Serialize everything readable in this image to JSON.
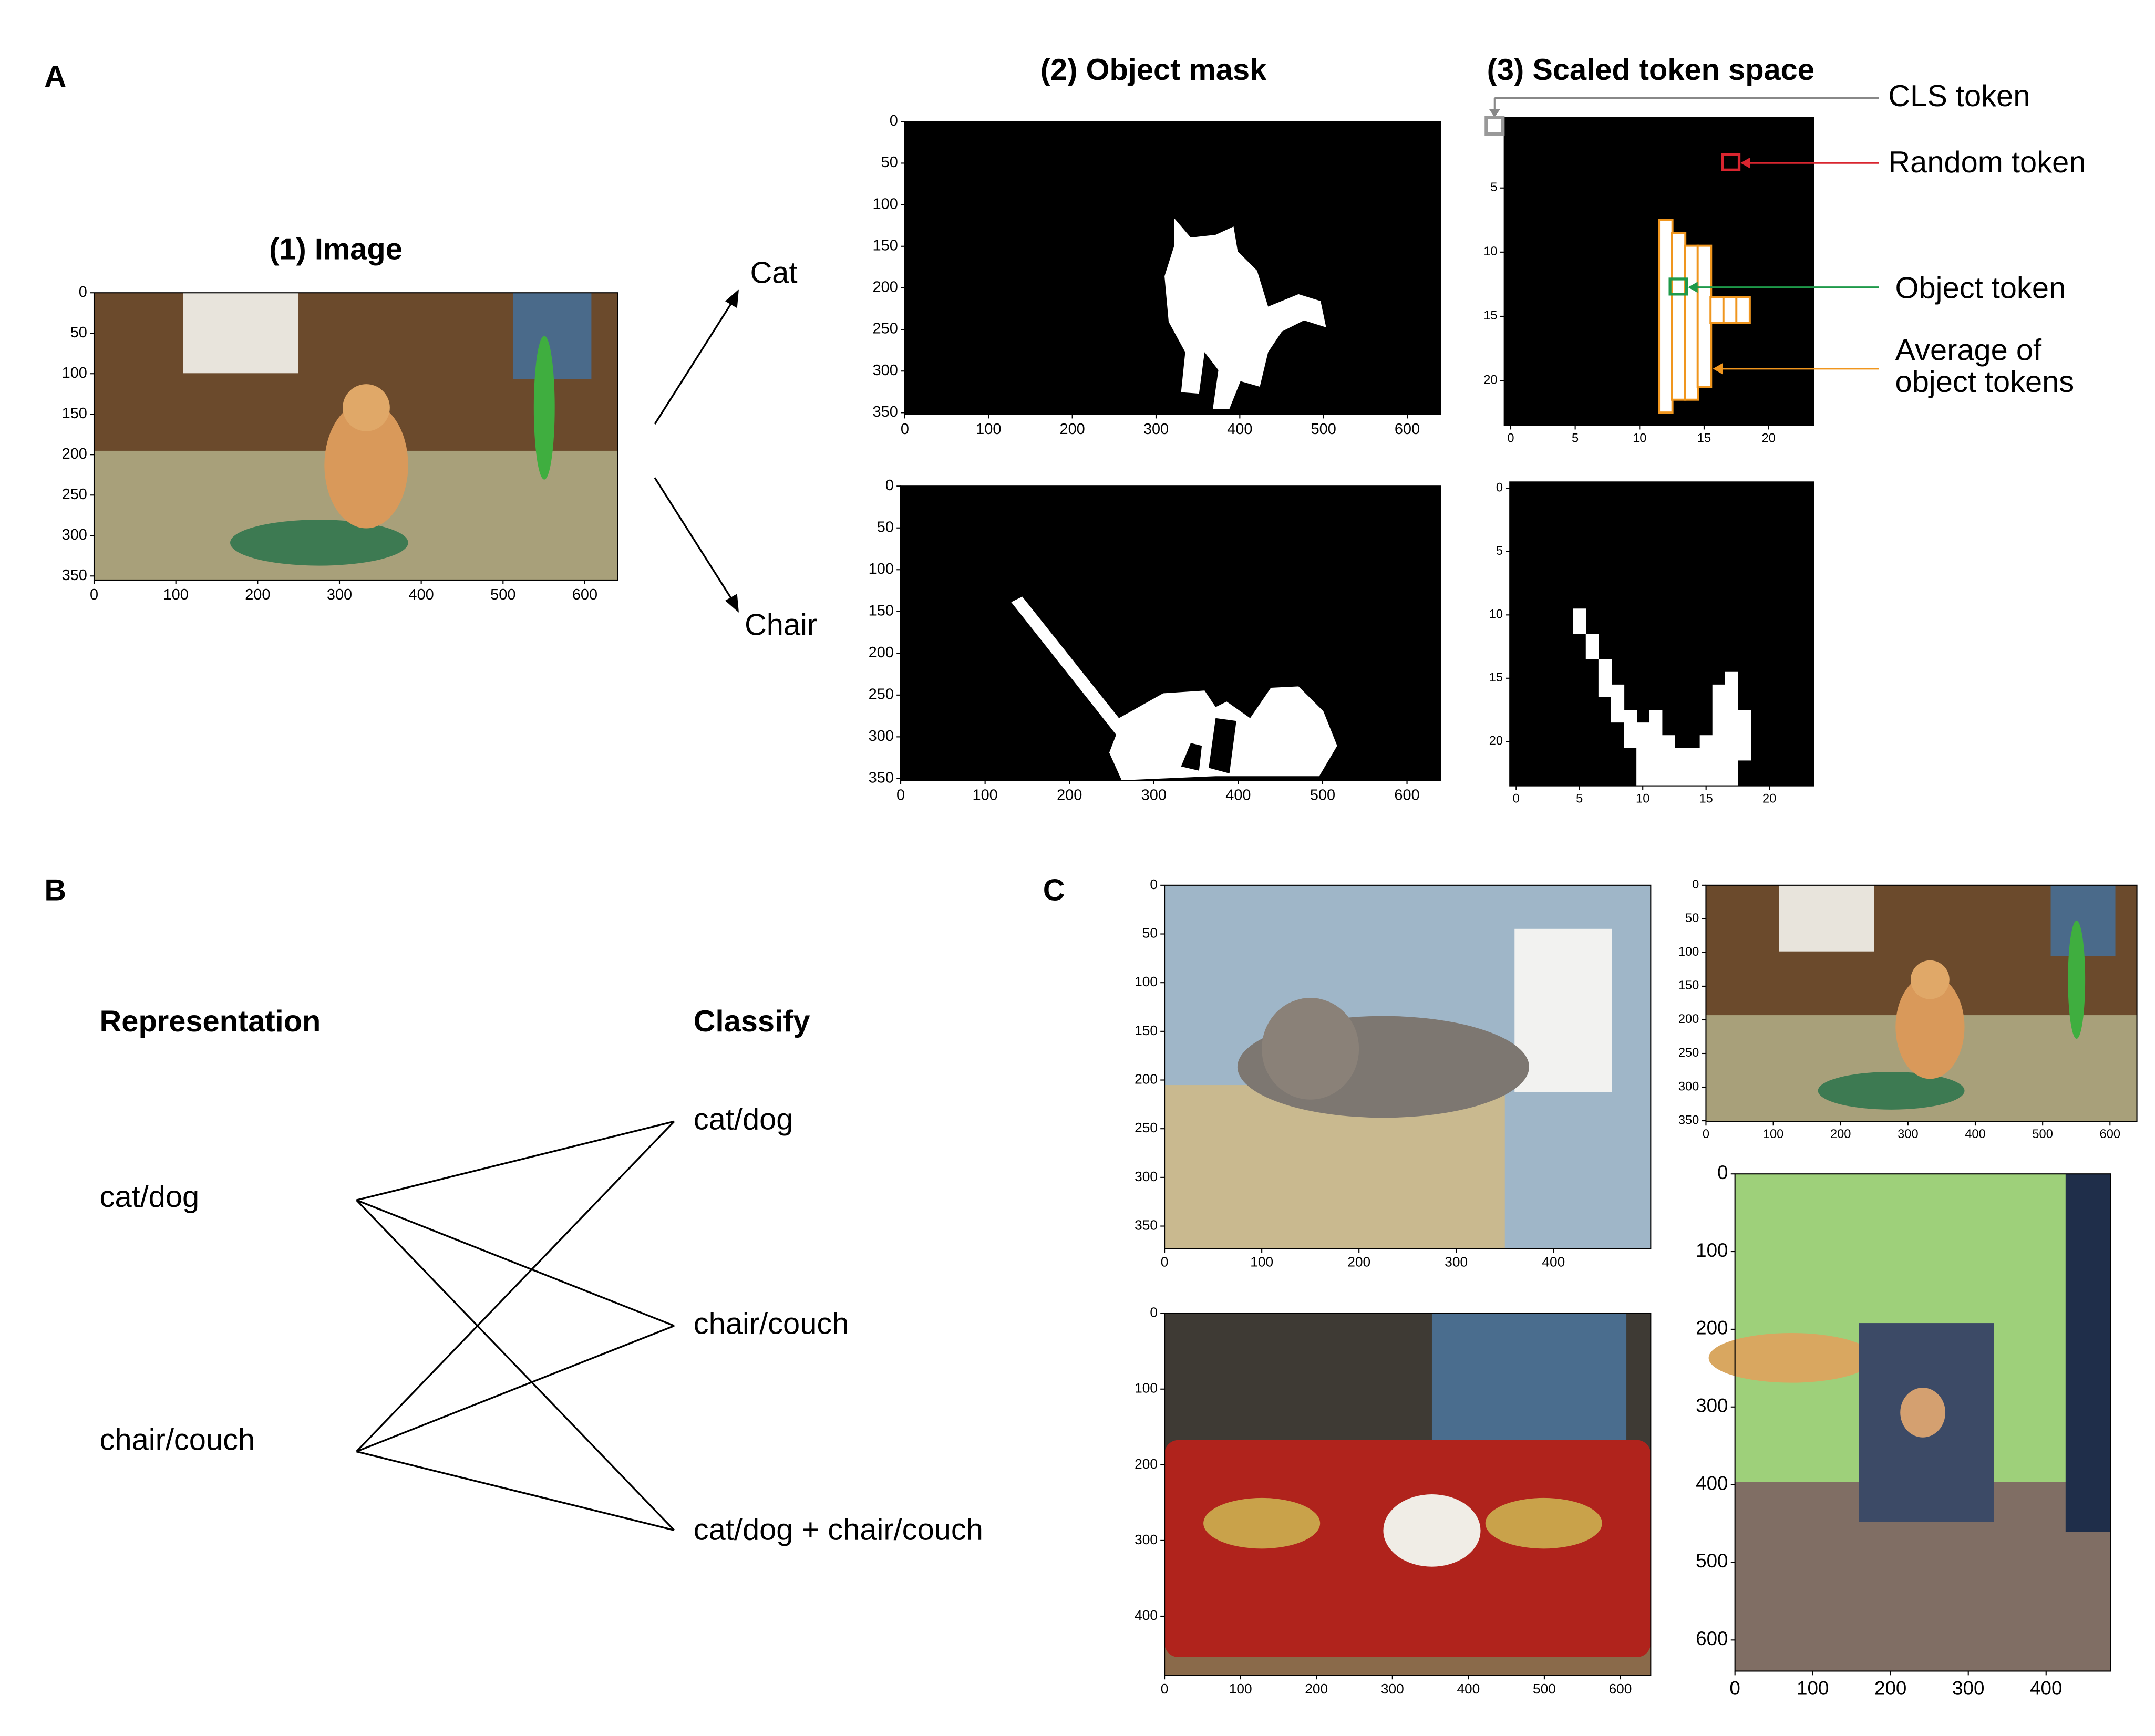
{
  "panel_a": {
    "label": "A",
    "image_title": "(1) Image",
    "image_axes": {
      "xlim": [
        0,
        640
      ],
      "ylim": [
        0,
        355
      ],
      "xticks": [
        0,
        100,
        200,
        300,
        400,
        500,
        600
      ],
      "yticks": [
        0,
        50,
        100,
        150,
        200,
        250,
        300,
        350
      ]
    },
    "arrow_labels": [
      "Cat",
      "Chair"
    ],
    "mask_title": "(2) Object mask",
    "mask_axes": [
      {
        "xlim": [
          0,
          640
        ],
        "ylim": [
          0,
          352
        ],
        "xticks": [
          0,
          100,
          200,
          300,
          400,
          500,
          600
        ],
        "yticks": [
          0,
          50,
          100,
          150,
          200,
          250,
          300,
          350
        ]
      },
      {
        "xlim": [
          0,
          640
        ],
        "ylim": [
          0,
          352
        ],
        "xticks": [
          0,
          100,
          200,
          300,
          400,
          500,
          600
        ],
        "yticks": [
          0,
          50,
          100,
          150,
          200,
          250,
          300,
          350
        ]
      }
    ],
    "token_title": "(3) Scaled token space",
    "token_axes": [
      {
        "xlim": [
          -0.5,
          23.5
        ],
        "ylim": [
          -0.5,
          23.5
        ],
        "xticks": [
          0,
          5,
          10,
          15,
          20
        ],
        "yticks": [
          5,
          10,
          15,
          20
        ]
      },
      {
        "xlim": [
          -0.5,
          23.5
        ],
        "ylim": [
          -0.5,
          23.5
        ],
        "xticks": [
          0,
          5,
          10,
          15,
          20
        ],
        "yticks": [
          0,
          5,
          10,
          15,
          20
        ]
      }
    ],
    "annotations": {
      "cls": "CLS token",
      "random": "Random token",
      "object": "Object token",
      "average": [
        "Average of",
        "object tokens"
      ]
    }
  },
  "panel_b": {
    "label": "B",
    "left_header": "Representation",
    "right_header": "Classify",
    "left": [
      "cat/dog",
      "chair/couch"
    ],
    "right": [
      "cat/dog",
      "chair/couch",
      "cat/dog + chair/couch"
    ]
  },
  "panel_c": {
    "label": "C",
    "plots": [
      {
        "xlim": [
          0,
          500
        ],
        "ylim": [
          0,
          373
        ],
        "xticks": [
          0,
          100,
          200,
          300,
          400
        ],
        "yticks": [
          0,
          50,
          100,
          150,
          200,
          250,
          300,
          350
        ]
      },
      {
        "xlim": [
          0,
          640
        ],
        "ylim": [
          0,
          351
        ],
        "xticks": [
          0,
          100,
          200,
          300,
          400,
          500,
          600
        ],
        "yticks": [
          0,
          50,
          100,
          150,
          200,
          250,
          300,
          350
        ]
      },
      {
        "xlim": [
          0,
          640
        ],
        "ylim": [
          0,
          478
        ],
        "xticks": [
          0,
          100,
          200,
          300,
          400,
          500,
          600
        ],
        "yticks": [
          0,
          100,
          200,
          300,
          400
        ]
      },
      {
        "xlim": [
          0,
          483
        ],
        "ylim": [
          0,
          640
        ],
        "xticks": [
          0,
          100,
          200,
          300,
          400
        ],
        "yticks": [
          0,
          100,
          200,
          300,
          400,
          500,
          600
        ]
      }
    ]
  }
}
